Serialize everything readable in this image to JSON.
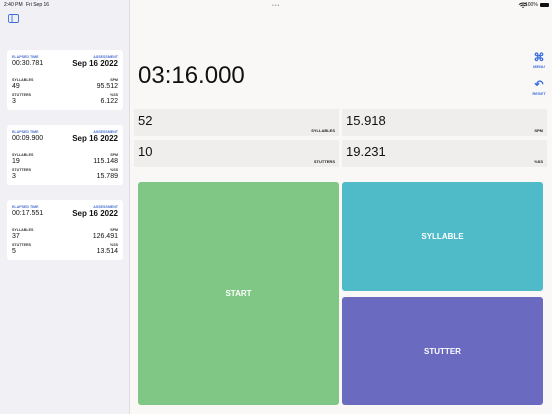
{
  "status": {
    "time": "2:40 PM",
    "date": "Fri Sep 16",
    "battery": "100%"
  },
  "sidebar": {
    "cards": [
      {
        "elapsed_label": "ELAPSED TIME",
        "elapsed": "00:30.781",
        "assessment_label": "ASSESSMENT",
        "date": "Sep 16 2022",
        "syllables_label": "SYLLABLES",
        "syllables": "49",
        "spm_label": "SPM",
        "spm": "95.512",
        "stutters_label": "STUTTERS",
        "stutters": "3",
        "ss_label": "%SS",
        "ss": "6.122"
      },
      {
        "elapsed_label": "ELAPSED TIME",
        "elapsed": "00:09.900",
        "assessment_label": "ASSESSMENT",
        "date": "Sep 16 2022",
        "syllables_label": "SYLLABLES",
        "syllables": "19",
        "spm_label": "SPM",
        "spm": "115.148",
        "stutters_label": "STUTTERS",
        "stutters": "3",
        "ss_label": "%SS",
        "ss": "15.789"
      },
      {
        "elapsed_label": "ELAPSED TIME",
        "elapsed": "00:17.551",
        "assessment_label": "ASSESSMENT",
        "date": "Sep 16 2022",
        "syllables_label": "SYLLABLES",
        "syllables": "37",
        "spm_label": "SPM",
        "spm": "126.491",
        "stutters_label": "STUTTERS",
        "stutters": "5",
        "ss_label": "%SS",
        "ss": "13.514"
      }
    ]
  },
  "main": {
    "timer": "03:16.000",
    "menu": "MENU",
    "reset": "RESET",
    "stats": [
      {
        "value": "52",
        "label": "SYLLABLES"
      },
      {
        "value": "15.918",
        "label": "SPM"
      },
      {
        "value": "10",
        "label": "STUTTERS"
      },
      {
        "value": "19.231",
        "label": "%SS"
      }
    ],
    "buttons": {
      "start": "START",
      "syllable": "SYLLABLE",
      "stutter": "STUTTER"
    }
  }
}
